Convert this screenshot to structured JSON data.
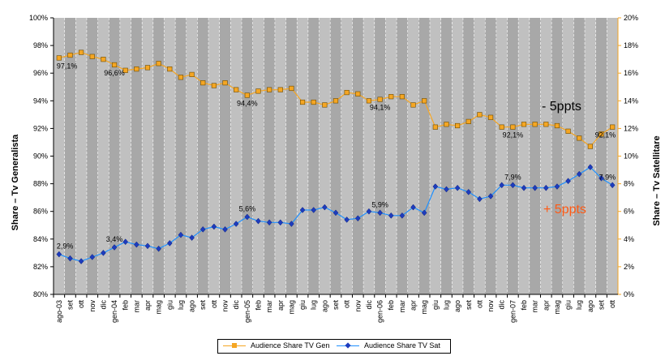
{
  "chart_data": {
    "type": "line",
    "categories": [
      "ago-03",
      "set",
      "ott",
      "nov",
      "dic",
      "gen-04",
      "feb",
      "mar",
      "apr",
      "mag",
      "giu",
      "lug",
      "ago",
      "set",
      "ott",
      "nov",
      "dic",
      "gen-05",
      "feb",
      "mar",
      "apr",
      "mag",
      "giu",
      "lug",
      "ago",
      "set",
      "ott",
      "nov",
      "dic",
      "gen-06",
      "feb",
      "mar",
      "apr",
      "mag",
      "giu",
      "lug",
      "ago",
      "set",
      "ott",
      "nov",
      "dic",
      "gen-07",
      "feb",
      "mar",
      "apr",
      "mag",
      "giu",
      "lug",
      "ago",
      "set",
      "ott"
    ],
    "y_left": {
      "title": "Share – Tv Generalista",
      "ticks": [
        "80%",
        "82%",
        "84%",
        "86%",
        "88%",
        "90%",
        "92%",
        "94%",
        "96%",
        "98%",
        "100%"
      ],
      "ylim": [
        80,
        100
      ]
    },
    "y_right": {
      "title": "Share – Tv Satellitare",
      "ticks": [
        "0%",
        "2%",
        "4%",
        "6%",
        "8%",
        "10%",
        "12%",
        "14%",
        "16%",
        "18%",
        "20%"
      ],
      "ylim": [
        0,
        20
      ]
    },
    "series": [
      {
        "name": "Audience Share TV Gen",
        "axis": "left",
        "color": "#f5a623",
        "marker": "square",
        "values": [
          97.1,
          97.3,
          97.5,
          97.2,
          97.0,
          96.6,
          96.2,
          96.3,
          96.4,
          96.7,
          96.3,
          95.7,
          95.9,
          95.3,
          95.1,
          95.3,
          94.8,
          94.4,
          94.7,
          94.8,
          94.8,
          94.9,
          93.9,
          93.9,
          93.7,
          94.0,
          94.6,
          94.5,
          94.0,
          94.1,
          94.3,
          94.3,
          93.7,
          94.0,
          92.1,
          92.3,
          92.2,
          92.5,
          93.0,
          92.8,
          92.1,
          92.1,
          92.3,
          92.3,
          92.3,
          92.2,
          91.8,
          91.3,
          90.7,
          91.6,
          92.1
        ]
      },
      {
        "name": "Audience Share TV Sat",
        "axis": "right",
        "color": "#1e90ff",
        "marker": "diamond",
        "values": [
          2.9,
          2.6,
          2.4,
          2.7,
          3.0,
          3.4,
          3.8,
          3.6,
          3.5,
          3.3,
          3.7,
          4.3,
          4.1,
          4.7,
          4.9,
          4.7,
          5.1,
          5.6,
          5.3,
          5.2,
          5.2,
          5.1,
          6.1,
          6.1,
          6.3,
          5.9,
          5.4,
          5.5,
          6.0,
          5.9,
          5.7,
          5.7,
          6.3,
          5.9,
          7.8,
          7.6,
          7.7,
          7.4,
          6.9,
          7.1,
          7.9,
          7.9,
          7.7,
          7.7,
          7.7,
          7.8,
          8.2,
          8.7,
          9.2,
          8.4,
          7.9
        ]
      }
    ],
    "data_labels": [
      {
        "series": 0,
        "index": 0,
        "text": "97,1%"
      },
      {
        "series": 0,
        "index": 5,
        "text": "96,6%"
      },
      {
        "series": 0,
        "index": 17,
        "text": "94,4%"
      },
      {
        "series": 0,
        "index": 29,
        "text": "94,1%"
      },
      {
        "series": 0,
        "index": 41,
        "text": "92,1%"
      },
      {
        "series": 0,
        "index": 50,
        "text": "92,1%"
      },
      {
        "series": 1,
        "index": 0,
        "text": "2,9%"
      },
      {
        "series": 1,
        "index": 5,
        "text": "3,4%"
      },
      {
        "series": 1,
        "index": 17,
        "text": "5,6%"
      },
      {
        "series": 1,
        "index": 29,
        "text": "5,9%"
      },
      {
        "series": 1,
        "index": 41,
        "text": "7,9%"
      },
      {
        "series": 1,
        "index": 50,
        "text": "7,9%"
      }
    ],
    "annotations": [
      {
        "text": "- 5ppts",
        "applies_to": "Audience Share TV Gen",
        "color": "#000000"
      },
      {
        "text": "+ 5ppts",
        "applies_to": "Audience Share TV Sat",
        "color": "#ff5a14"
      }
    ],
    "grid": "vertical dashed stripes",
    "plot_background": "#c0c0c0",
    "stripe_color": "#a8a8a8",
    "legend_position": "bottom"
  }
}
